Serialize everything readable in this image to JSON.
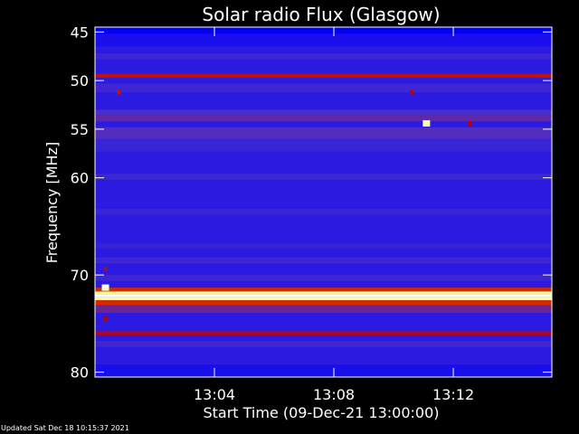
{
  "chart_data": {
    "type": "heatmap",
    "title": "Solar radio Flux (Glasgow)",
    "xlabel": "Start Time (09-Dec-21 13:00:00)",
    "ylabel": "Frequency [MHz]",
    "x_unit": "minutes after 13:00:00",
    "xlim": [
      0,
      15.3
    ],
    "ylim_top": 44.5,
    "ylim_bottom": 80.5,
    "y_axis_direction": "increasing downward",
    "x_ticks": [
      {
        "value": 4,
        "label": "13:04"
      },
      {
        "value": 8,
        "label": "13:08"
      },
      {
        "value": 12,
        "label": "13:12"
      }
    ],
    "y_ticks": [
      {
        "value": 45,
        "label": "45"
      },
      {
        "value": 50,
        "label": "50"
      },
      {
        "value": 55,
        "label": "55"
      },
      {
        "value": 60,
        "label": "60"
      },
      {
        "value": 70,
        "label": "70"
      },
      {
        "value": 80,
        "label": "80"
      }
    ],
    "colormap": [
      "#00007a",
      "#0000ff",
      "#4d30c8",
      "#c00000",
      "#ff8c00",
      "#ffff80",
      "#ffffff"
    ],
    "background_intensity": 0.26,
    "frequency_bands": [
      {
        "freq_min": 44.5,
        "freq_max": 45.2,
        "intensity": 0.15
      },
      {
        "freq_min": 45.2,
        "freq_max": 46.5,
        "intensity": 0.22
      },
      {
        "freq_min": 47.2,
        "freq_max": 47.8,
        "intensity": 0.3
      },
      {
        "freq_min": 49.3,
        "freq_max": 49.7,
        "intensity": 0.52
      },
      {
        "freq_min": 50.3,
        "freq_max": 51.2,
        "intensity": 0.3
      },
      {
        "freq_min": 53.0,
        "freq_max": 53.6,
        "intensity": 0.33
      },
      {
        "freq_min": 53.6,
        "freq_max": 54.2,
        "intensity": 0.36
      },
      {
        "freq_min": 54.8,
        "freq_max": 56.0,
        "intensity": 0.34
      },
      {
        "freq_min": 56.0,
        "freq_max": 57.3,
        "intensity": 0.29
      },
      {
        "freq_min": 59.6,
        "freq_max": 60.2,
        "intensity": 0.3
      },
      {
        "freq_min": 63.2,
        "freq_max": 63.8,
        "intensity": 0.29
      },
      {
        "freq_min": 66.7,
        "freq_max": 67.3,
        "intensity": 0.28
      },
      {
        "freq_min": 68.2,
        "freq_max": 68.8,
        "intensity": 0.3
      },
      {
        "freq_min": 70.0,
        "freq_max": 70.6,
        "intensity": 0.3
      },
      {
        "freq_min": 71.3,
        "freq_max": 71.7,
        "intensity": 0.55
      },
      {
        "freq_min": 71.7,
        "freq_max": 72.0,
        "intensity": 0.85
      },
      {
        "freq_min": 72.0,
        "freq_max": 72.3,
        "intensity": 1.0
      },
      {
        "freq_min": 72.3,
        "freq_max": 72.6,
        "intensity": 0.85
      },
      {
        "freq_min": 72.6,
        "freq_max": 73.1,
        "intensity": 0.55
      },
      {
        "freq_min": 73.1,
        "freq_max": 73.9,
        "intensity": 0.38
      },
      {
        "freq_min": 75.8,
        "freq_max": 76.2,
        "intensity": 0.48
      },
      {
        "freq_min": 76.8,
        "freq_max": 77.4,
        "intensity": 0.3
      },
      {
        "freq_min": 79.2,
        "freq_max": 80.5,
        "intensity": 0.22
      }
    ],
    "hotspots": [
      {
        "time": 0.35,
        "freq": 71.3,
        "intensity": 0.95
      },
      {
        "time": 0.35,
        "freq": 69.4,
        "intensity": 0.45
      },
      {
        "time": 0.35,
        "freq": 74.5,
        "intensity": 0.5
      },
      {
        "time": 0.8,
        "freq": 51.2,
        "intensity": 0.52
      },
      {
        "time": 10.6,
        "freq": 51.2,
        "intensity": 0.5
      },
      {
        "time": 11.1,
        "freq": 54.4,
        "intensity": 0.9
      },
      {
        "time": 12.55,
        "freq": 54.4,
        "intensity": 0.5
      }
    ],
    "grid": false,
    "legend": "none"
  },
  "footer": {
    "updated": "Updated Sat Dec 18 10:15:37 2021"
  }
}
